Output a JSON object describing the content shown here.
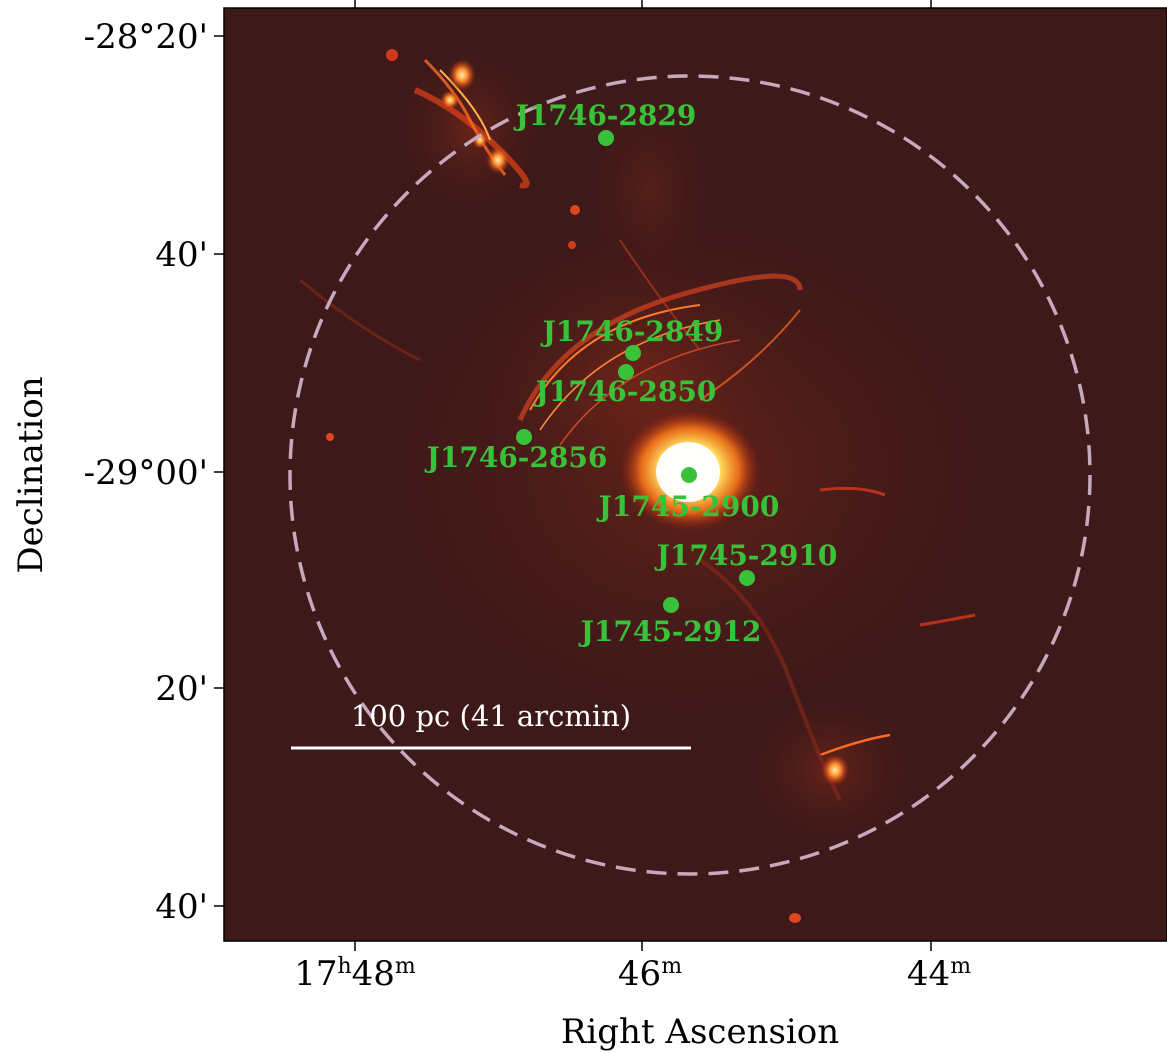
{
  "figure": {
    "x_axis_title": "Right Ascension",
    "y_axis_title": "Declination",
    "x_ticks": [
      {
        "label": "17",
        "sup1": "h",
        "mid": "48",
        "sup2": "m"
      },
      {
        "label": "46",
        "sup1": "",
        "mid": "",
        "sup2": "m"
      },
      {
        "label": "44",
        "sup1": "",
        "mid": "",
        "sup2": "m"
      }
    ],
    "y_ticks": [
      "-28°20'",
      "40'",
      "-29°00'",
      "20'",
      "40'"
    ],
    "scale_bar_label": "100 pc (41 arcmin)",
    "sources": [
      {
        "name": "J1746-2829"
      },
      {
        "name": "J1746-2849"
      },
      {
        "name": "J1746-2850"
      },
      {
        "name": "J1746-2856"
      },
      {
        "name": "J1745-2900"
      },
      {
        "name": "J1745-2910"
      },
      {
        "name": "J1745-2912"
      }
    ],
    "colors": {
      "background_map": "#3e1919",
      "source_marker": "#39c13a",
      "circle": "#c7a8bd",
      "scale_bar": "#ffffff"
    }
  }
}
